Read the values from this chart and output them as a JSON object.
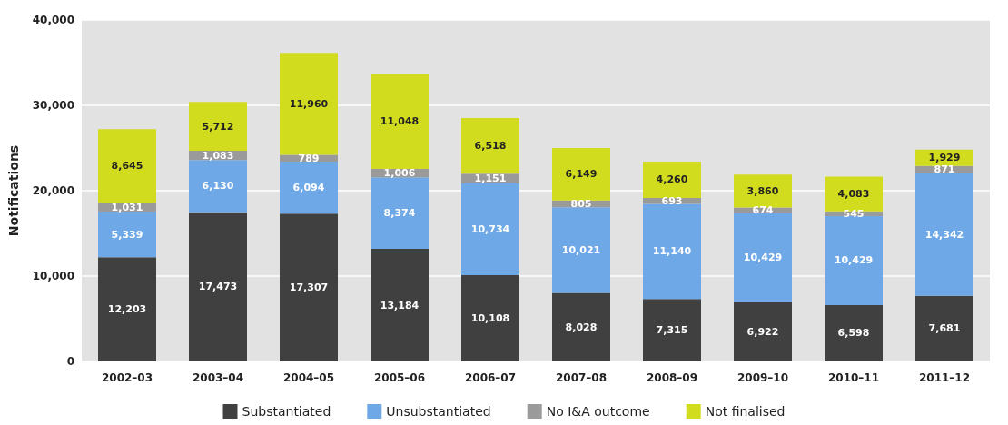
{
  "chart_data": {
    "type": "bar",
    "stacked": true,
    "ylabel": "Notifications",
    "categories": [
      "2002–03",
      "2003–04",
      "2004–05",
      "2005–06",
      "2006–07",
      "2007–08",
      "2008–09",
      "2009–10",
      "2010–11",
      "2011–12"
    ],
    "series": [
      {
        "name": "Substantiated",
        "color": "#404040",
        "values": [
          12203,
          17473,
          17307,
          13184,
          10108,
          8028,
          7315,
          6922,
          6598,
          7681
        ],
        "value_labels": [
          "12,203",
          "17,473",
          "17,307",
          "13,184",
          "10,108",
          "8,028",
          "7,315",
          "6,922",
          "6,598",
          "7,681"
        ]
      },
      {
        "name": "Unsubstantiated",
        "color": "#6fa8e6",
        "values": [
          5339,
          6130,
          6094,
          8374,
          10734,
          10021,
          11140,
          10429,
          10429,
          14342
        ],
        "value_labels": [
          "5,339",
          "6,130",
          "6,094",
          "8,374",
          "10,734",
          "10,021",
          "11,140",
          "10,429",
          "10,429",
          "14,342"
        ]
      },
      {
        "name": "No I&A outcome",
        "color": "#9a9a9a",
        "values": [
          1031,
          1083,
          789,
          1006,
          1151,
          805,
          693,
          674,
          545,
          871
        ],
        "value_labels": [
          "1,031",
          "1,083",
          "789",
          "1,006",
          "1,151",
          "805",
          "693",
          "674",
          "545",
          "871"
        ]
      },
      {
        "name": "Not finalised",
        "color": "#d2dc1e",
        "values": [
          8645,
          5712,
          11960,
          11048,
          6518,
          6149,
          4260,
          3860,
          4083,
          1929
        ],
        "value_labels": [
          "8,645",
          "5,712",
          "11,960",
          "11,048",
          "6,518",
          "6,149",
          "4,260",
          "3,860",
          "4,083",
          "1,929"
        ]
      }
    ],
    "ylim": [
      0,
      40000
    ],
    "yticks": [
      0,
      {
        "value": 10000,
        "label": "10,000"
      },
      {
        "value": 20000,
        "label": "20,000"
      },
      {
        "value": 30000,
        "label": "30,000"
      },
      {
        "value": 40000,
        "label": "40,000"
      }
    ],
    "grid": "y",
    "legend": "bottom"
  }
}
